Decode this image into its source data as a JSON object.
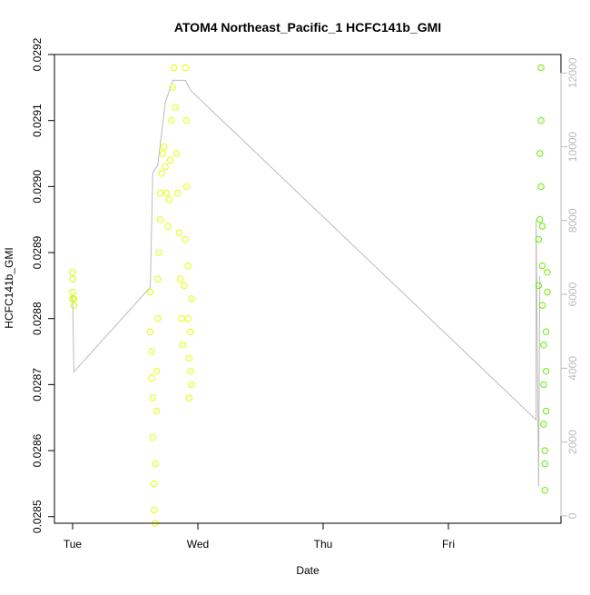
{
  "chart_data": {
    "type": "scatter",
    "title": "ATOM4 Northeast_Pacific_1 HCFC141b_GMI",
    "xlabel": "Date",
    "ylabel": "HCFC141b_GMI",
    "x_ticks": [
      "Tue",
      "Wed",
      "Thu",
      "Fri"
    ],
    "x_range_days": [
      0,
      3.8
    ],
    "ylim": [
      0.02849,
      0.0292
    ],
    "y_ticks": [
      "0.0285",
      "0.0286",
      "0.0287",
      "0.0288",
      "0.0289",
      "0.0290",
      "0.0291",
      "0.0292"
    ],
    "y2lim": [
      -200,
      12500
    ],
    "y2_ticks": [
      "0",
      "2000",
      "4000",
      "6000",
      "8000",
      "10000",
      "12000"
    ],
    "grid": false,
    "colors": {
      "points_early": "#ccff00",
      "points_mid": "#e4ff00",
      "points_late": "#66ee00",
      "altitude_line": "#bbbbbb",
      "axis": "#000000",
      "secondary_axis": "#bbbbbb"
    },
    "series": [
      {
        "marker": "open-circle",
        "points": [
          [
            0.0,
            0.02883
          ],
          [
            0.0,
            0.02884
          ],
          [
            0.0,
            0.02886
          ],
          [
            0.0,
            0.02887
          ],
          [
            0.01,
            0.02882
          ],
          [
            0.01,
            0.02883
          ],
          [
            0.62,
            0.02884
          ],
          [
            0.62,
            0.02878
          ],
          [
            0.63,
            0.02875
          ],
          [
            0.63,
            0.02871
          ],
          [
            0.64,
            0.02868
          ],
          [
            0.64,
            0.02862
          ],
          [
            0.65,
            0.02855
          ],
          [
            0.65,
            0.02851
          ],
          [
            0.66,
            0.02849
          ],
          [
            0.66,
            0.02858
          ],
          [
            0.67,
            0.02866
          ],
          [
            0.67,
            0.02872
          ],
          [
            0.68,
            0.0288
          ],
          [
            0.68,
            0.02886
          ],
          [
            0.69,
            0.0289
          ],
          [
            0.7,
            0.02895
          ],
          [
            0.7,
            0.02899
          ],
          [
            0.71,
            0.02902
          ],
          [
            0.72,
            0.02905
          ],
          [
            0.73,
            0.02906
          ],
          [
            0.74,
            0.02903
          ],
          [
            0.75,
            0.02899
          ],
          [
            0.76,
            0.02894
          ],
          [
            0.77,
            0.02898
          ],
          [
            0.78,
            0.02904
          ],
          [
            0.79,
            0.0291
          ],
          [
            0.8,
            0.02915
          ],
          [
            0.81,
            0.02918
          ],
          [
            0.82,
            0.02912
          ],
          [
            0.83,
            0.02905
          ],
          [
            0.84,
            0.02899
          ],
          [
            0.85,
            0.02893
          ],
          [
            0.86,
            0.02886
          ],
          [
            0.87,
            0.0288
          ],
          [
            0.88,
            0.02876
          ],
          [
            0.89,
            0.02885
          ],
          [
            0.9,
            0.02892
          ],
          [
            0.9,
            0.02918
          ],
          [
            0.91,
            0.0291
          ],
          [
            0.91,
            0.029
          ],
          [
            0.92,
            0.02888
          ],
          [
            0.92,
            0.0288
          ],
          [
            0.93,
            0.02874
          ],
          [
            0.93,
            0.02868
          ],
          [
            0.94,
            0.02872
          ],
          [
            0.94,
            0.02878
          ],
          [
            0.95,
            0.02883
          ],
          [
            0.95,
            0.0287
          ],
          [
            3.72,
            0.02892
          ],
          [
            3.72,
            0.02885
          ],
          [
            3.73,
            0.02895
          ],
          [
            3.73,
            0.02905
          ],
          [
            3.74,
            0.02918
          ],
          [
            3.74,
            0.0291
          ],
          [
            3.74,
            0.029
          ],
          [
            3.75,
            0.02894
          ],
          [
            3.75,
            0.02888
          ],
          [
            3.75,
            0.02882
          ],
          [
            3.76,
            0.02876
          ],
          [
            3.76,
            0.0287
          ],
          [
            3.76,
            0.02864
          ],
          [
            3.77,
            0.02858
          ],
          [
            3.77,
            0.02854
          ],
          [
            3.77,
            0.0286
          ],
          [
            3.78,
            0.02866
          ],
          [
            3.78,
            0.02872
          ],
          [
            3.78,
            0.02878
          ],
          [
            3.79,
            0.02884
          ],
          [
            3.79,
            0.02887
          ]
        ]
      }
    ],
    "secondary_series": {
      "name": "",
      "axis": "right",
      "points": [
        [
          0.0,
          6000
        ],
        [
          0.01,
          3900
        ],
        [
          3.7,
          2600
        ],
        [
          3.7,
          8000
        ],
        [
          3.72,
          800
        ],
        [
          3.73,
          6500
        ],
        [
          0.62,
          6200
        ],
        [
          0.64,
          9300
        ],
        [
          0.68,
          9500
        ],
        [
          0.74,
          11200
        ],
        [
          0.8,
          11800
        ],
        [
          0.86,
          11800
        ],
        [
          0.9,
          11800
        ],
        [
          0.93,
          11600
        ],
        [
          0.95,
          11500
        ]
      ]
    }
  }
}
